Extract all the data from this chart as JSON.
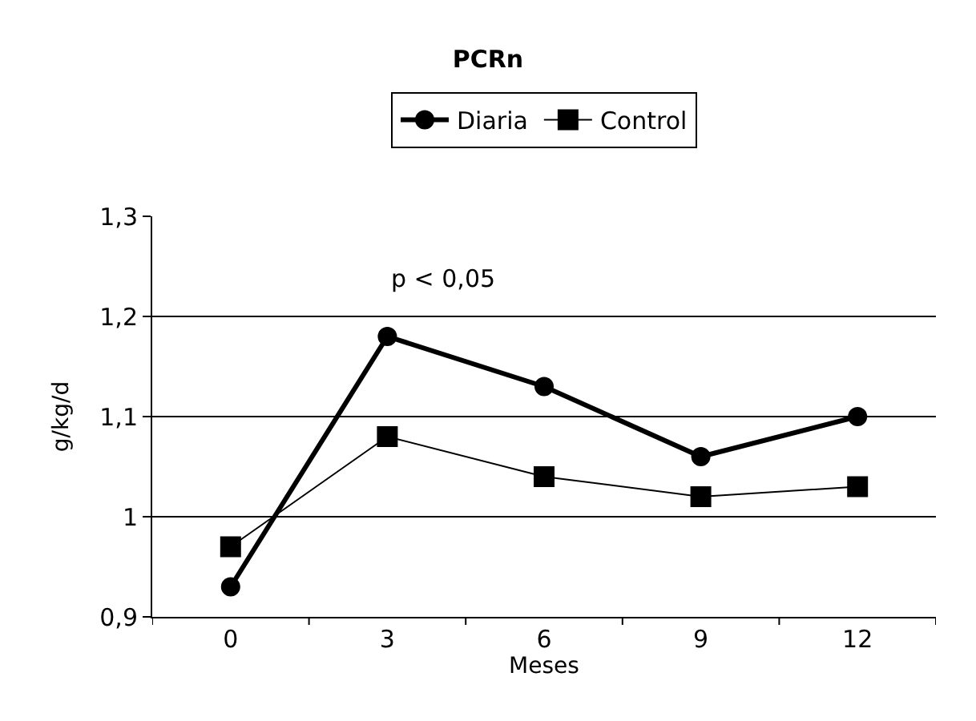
{
  "chart_data": {
    "type": "line",
    "title": "PCRn",
    "xlabel": "Meses",
    "ylabel": "g/kg/d",
    "categories": [
      "0",
      "3",
      "6",
      "9",
      "12"
    ],
    "series": [
      {
        "name": "Diaria",
        "color": "#000000",
        "values": [
          0.93,
          1.18,
          1.13,
          1.06,
          1.1
        ],
        "marker": "circle"
      },
      {
        "name": "Control",
        "color": "#000000",
        "values": [
          0.97,
          1.08,
          1.04,
          1.02,
          1.03
        ],
        "marker": "square"
      }
    ],
    "ylim": [
      0.9,
      1.3
    ],
    "yticks": [
      {
        "value": 0.9,
        "label": "0,9"
      },
      1,
      {
        "value": 1.1,
        "label": "1,1"
      },
      {
        "value": 1.2,
        "label": "1,2"
      },
      {
        "value": 1.3,
        "label": "1,3"
      }
    ],
    "grid": "y",
    "legend": "top",
    "annotations": [
      "p < 0,05"
    ]
  }
}
